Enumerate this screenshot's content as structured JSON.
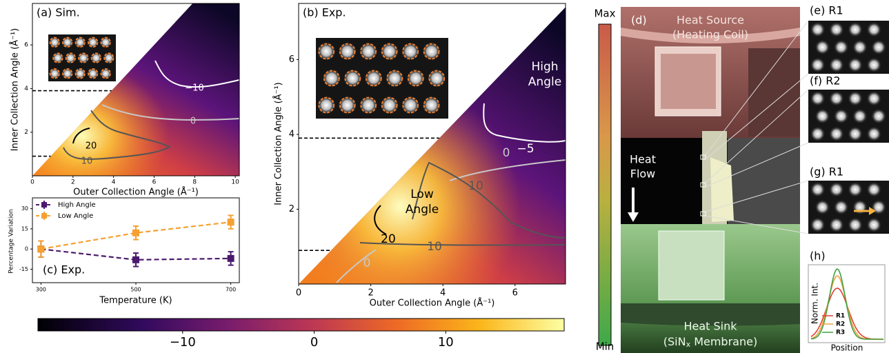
{
  "chart_data": {
    "type": "line",
    "title": "(c) Exp.",
    "xlabel": "Temperature (K)",
    "ylabel": "Percentage Variation",
    "x": [
      300,
      500,
      700
    ],
    "xlim": [
      282,
      718
    ],
    "xticks": [
      300,
      500,
      700
    ],
    "ylim": [
      -25,
      38
    ],
    "yticks": [
      -15,
      0,
      15,
      30
    ],
    "legend": "upper left",
    "series": [
      {
        "name": "High Angle",
        "color": "#4b1a6e",
        "values": [
          0,
          -8,
          -7
        ],
        "errors": [
          6,
          5,
          5
        ]
      },
      {
        "name": "Low Angle",
        "color": "#f5a030",
        "values": [
          0,
          12,
          20
        ],
        "errors": [
          6,
          5,
          5
        ]
      }
    ]
  },
  "panel_a": {
    "title": "(a) Sim.",
    "xlabel": "Outer Collection Angle (Å⁻¹)",
    "ylabel": "Inner Collection Angle (Å⁻¹)",
    "xlim": [
      0,
      10.2
    ],
    "ylim": [
      0,
      7.9
    ],
    "xticks": [
      0,
      2,
      4,
      6,
      8,
      10
    ],
    "yticks": [
      2,
      4,
      6
    ],
    "dashed_lines": [
      3.9,
      0.9
    ],
    "contours": [
      {
        "value": -10,
        "label": "−10"
      },
      0,
      10,
      20
    ]
  },
  "panel_b": {
    "title": "(b) Exp.",
    "xlabel": "Outer Collection Angle (Å⁻¹)",
    "ylabel": "Inner Collection Angle (Å⁻¹)",
    "xlim": [
      0,
      7.4
    ],
    "ylim": [
      0,
      7.5
    ],
    "xticks": [
      0,
      2,
      4,
      6
    ],
    "yticks": [
      2,
      4,
      6
    ],
    "dashed_lines": [
      3.9,
      0.9
    ],
    "contours": [
      {
        "value": -5,
        "label": "−5"
      },
      0,
      10,
      20,
      10,
      0
    ],
    "high_label": [
      "High",
      "Angle"
    ],
    "low_label": [
      "Low",
      "Angle"
    ]
  },
  "colorbar": {
    "lim": [
      -21,
      19
    ],
    "ticks": [
      {
        "value": -10,
        "label": "−10"
      },
      0,
      10
    ]
  },
  "scale_bar": {
    "max_label": "Max",
    "min_label": "Min"
  },
  "panel_d": {
    "title": "(d)",
    "source": [
      "Heat Source",
      "(Heating Coil)"
    ],
    "flow": [
      "Heat",
      "Flow"
    ],
    "sink": [
      "Heat Sink",
      "(SiN",
      "x",
      " Membrane)"
    ]
  },
  "panel_e": {
    "title": "(e) R1"
  },
  "panel_f": {
    "title": "(f) R2"
  },
  "panel_g": {
    "title": "(g) R1"
  },
  "panel_h": {
    "title": "(h)",
    "ylabel": "Norm. Int.",
    "xlabel": "Position",
    "legend": [
      "R1",
      "R2",
      "R3"
    ]
  }
}
